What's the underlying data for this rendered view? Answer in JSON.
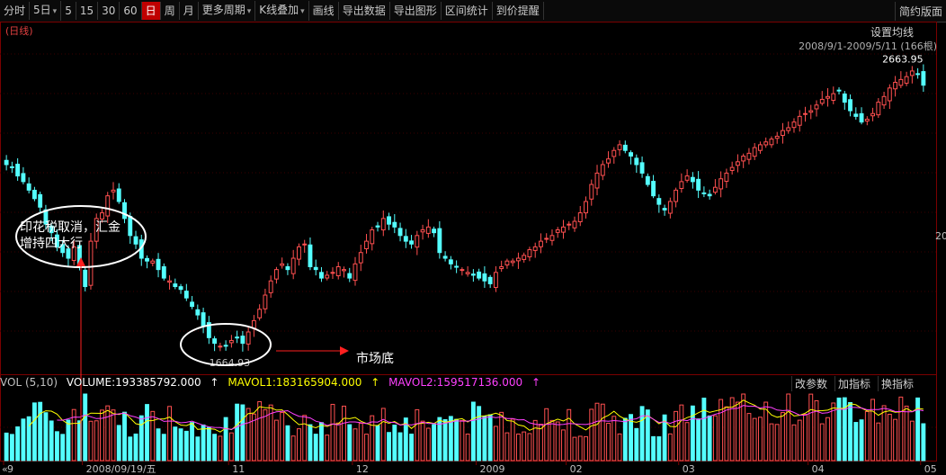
{
  "toolbar": {
    "items": [
      "分时",
      "5日",
      "5",
      "15",
      "30",
      "60",
      "日",
      "周",
      "月",
      "更多周期",
      "K线叠加",
      "画线",
      "导出数据",
      "导出图形",
      "区间统计",
      "到价提醒"
    ],
    "active_index": 6,
    "dropdown_indexes": [
      1,
      9,
      10
    ],
    "right_title": "简约版面"
  },
  "chart": {
    "period_tag": "(日线)",
    "ma_setting_label": "设置均线",
    "range_label": "2008/9/1-2009/5/11 (166根)",
    "side_marker": "20"
  },
  "colors": {
    "up": "#ff5050",
    "down": "#54ffff",
    "vol_line1": "#ffff00",
    "vol_line2": "#ff40ff",
    "annotation": "#ffffff",
    "arrow": "#ff2020"
  },
  "volume_panel": {
    "indicator": "VOL (5,10)",
    "volume_label": "VOLUME:193385792.000",
    "mavol1_label": "MAVOL1:183165904.000",
    "mavol2_label": "MAVOL2:159517136.000",
    "buttons": [
      "改参数",
      "加指标",
      "换指标"
    ]
  },
  "x_axis": {
    "labels": [
      {
        "text": "9",
        "index": 0
      },
      {
        "text": "2008/09/19/五",
        "index": 14
      },
      {
        "text": "11",
        "index": 40
      },
      {
        "text": "12",
        "index": 62
      },
      {
        "text": "2009",
        "index": 84
      },
      {
        "text": "02",
        "index": 100
      },
      {
        "text": "03",
        "index": 120
      },
      {
        "text": "04",
        "index": 143
      },
      {
        "text": "05",
        "index": 163
      }
    ],
    "scroll_left_glyph": "«"
  },
  "annotations": {
    "note1": {
      "line1": "印花税取消，汇金",
      "line2": "增持四大行"
    },
    "note2": "市场底",
    "low_label": "1664.93",
    "high_label": "2663.95"
  },
  "chart_data": {
    "type": "candlestick",
    "title": "",
    "period": "daily",
    "x_start": "2008/9/1",
    "x_end": "2009/5/11",
    "bar_count": 166,
    "price_high": 2663.95,
    "price_low": 1664.93,
    "y_range": [
      1610,
      2720
    ],
    "closes": [
      2330,
      2320,
      2290,
      2270,
      2240,
      2210,
      2180,
      2120,
      2090,
      2040,
      2020,
      2000,
      2040,
      1970,
      1900,
      2060,
      2140,
      2160,
      2220,
      2240,
      2200,
      2140,
      2080,
      2050,
      2000,
      1990,
      1990,
      1960,
      1930,
      1920,
      1900,
      1890,
      1860,
      1830,
      1800,
      1760,
      1720,
      1700,
      1690,
      1690,
      1710,
      1720,
      1700,
      1740,
      1780,
      1820,
      1870,
      1920,
      1960,
      1980,
      1960,
      2000,
      2040,
      2050,
      1970,
      1960,
      1930,
      1940,
      1950,
      1970,
      1960,
      1930,
      1980,
      2020,
      2060,
      2100,
      2110,
      2140,
      2120,
      2110,
      2080,
      2060,
      2050,
      2080,
      2100,
      2110,
      2090,
      2020,
      2000,
      1980,
      1970,
      1960,
      1950,
      1940,
      1930,
      1920,
      1910,
      1950,
      1970,
      1990,
      1990,
      2000,
      2010,
      2030,
      2040,
      2060,
      2070,
      2080,
      2100,
      2110,
      2120,
      2130,
      2160,
      2200,
      2260,
      2300,
      2330,
      2350,
      2380,
      2400,
      2380,
      2360,
      2330,
      2300,
      2260,
      2220,
      2190,
      2170,
      2200,
      2240,
      2270,
      2290,
      2270,
      2240,
      2230,
      2220,
      2250,
      2280,
      2300,
      2320,
      2340,
      2360,
      2370,
      2390,
      2400,
      2410,
      2420,
      2430,
      2450,
      2460,
      2480,
      2500,
      2510,
      2520,
      2540,
      2560,
      2570,
      2580,
      2590,
      2550,
      2520,
      2500,
      2480,
      2490,
      2510,
      2550,
      2570,
      2600,
      2620,
      2630,
      2640,
      2660,
      2650,
      2610
    ],
    "annotated_points": [
      {
        "label": "1664.93",
        "index": 37,
        "type": "low"
      },
      {
        "label": "2663.95",
        "index": 164,
        "type": "high"
      }
    ],
    "volume": {
      "last": 193385792.0,
      "mavol1": 183165904.0,
      "mavol2": 159517136.0,
      "params": [
        5,
        10
      ]
    }
  }
}
